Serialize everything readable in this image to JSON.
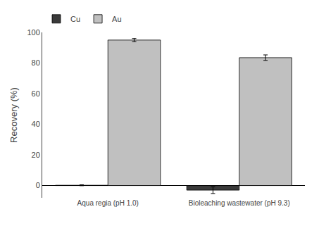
{
  "chart_data": {
    "type": "bar",
    "categories": [
      "Aqua regia (pH 1.0)",
      "Bioleaching wastewater (pH 9.3)"
    ],
    "series": [
      {
        "name": "Cu",
        "color": "#3a3a3a",
        "values": [
          0.2,
          -3.0
        ],
        "errors": [
          0.3,
          2.2
        ]
      },
      {
        "name": "Au",
        "color": "#c0c0c0",
        "values": [
          95.0,
          83.5
        ],
        "errors": [
          1.0,
          1.8
        ]
      }
    ],
    "ylabel": "Recovery (%)",
    "ylim": [
      -8,
      100
    ],
    "yticks": [
      0,
      20,
      40,
      60,
      80,
      100
    ],
    "grid": false,
    "legend": "upper left"
  }
}
